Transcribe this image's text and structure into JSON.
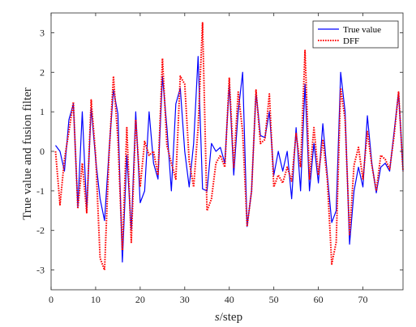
{
  "chart_data": {
    "type": "line",
    "xlabel_italic": "s",
    "xlabel_rest": "/step",
    "ylabel": "True value and fusion filter",
    "xlim": [
      0,
      79
    ],
    "ylim": [
      -3.5,
      3.5
    ],
    "xticks": [
      0,
      10,
      20,
      30,
      40,
      50,
      60,
      70
    ],
    "yticks": [
      -3,
      -2,
      -1,
      0,
      1,
      2,
      3
    ],
    "grid": false,
    "legend_position": "top-right",
    "x": [
      1,
      2,
      3,
      4,
      5,
      6,
      7,
      8,
      9,
      10,
      11,
      12,
      13,
      14,
      15,
      16,
      17,
      18,
      19,
      20,
      21,
      22,
      23,
      24,
      25,
      26,
      27,
      28,
      29,
      30,
      31,
      32,
      33,
      34,
      35,
      36,
      37,
      38,
      39,
      40,
      41,
      42,
      43,
      44,
      45,
      46,
      47,
      48,
      49,
      50,
      51,
      52,
      53,
      54,
      55,
      56,
      57,
      58,
      59,
      60,
      61,
      62,
      63,
      64,
      65,
      66,
      67,
      68,
      69,
      70,
      71,
      72,
      73,
      74,
      75,
      76,
      77,
      78,
      79
    ],
    "series": [
      {
        "name": "True value",
        "color": "#0000ff",
        "dash": "solid",
        "values": [
          0.15,
          0.0,
          -0.5,
          0.8,
          1.2,
          -1.4,
          1.0,
          -1.5,
          1.1,
          -0.2,
          -1.2,
          -1.75,
          0.0,
          1.55,
          0.95,
          -2.8,
          -0.1,
          -2.0,
          1.0,
          -1.3,
          -1.0,
          1.0,
          -0.3,
          -0.7,
          1.9,
          0.6,
          -1.0,
          1.2,
          1.6,
          0.0,
          -0.9,
          0.2,
          2.4,
          -0.95,
          -1.0,
          0.2,
          0.0,
          0.1,
          -0.3,
          1.7,
          -0.6,
          1.0,
          2.0,
          -1.9,
          -1.0,
          1.5,
          0.4,
          0.35,
          1.0,
          -0.6,
          0.0,
          -0.5,
          0.0,
          -1.2,
          0.6,
          -1.0,
          1.7,
          -1.0,
          0.2,
          -0.8,
          0.7,
          -0.6,
          -1.8,
          -1.5,
          2.0,
          1.0,
          -2.35,
          -1.0,
          -0.4,
          -0.9,
          0.9,
          -0.3,
          -1.05,
          -0.4,
          -0.3,
          -0.5,
          0.5,
          1.5,
          -0.5
        ],
        "labels_hidden": true
      },
      {
        "name": "DFF",
        "color": "#ff0000",
        "dash": "dotted",
        "values": [
          0.0,
          -1.35,
          -0.2,
          0.5,
          1.25,
          -1.45,
          -0.3,
          -1.55,
          1.3,
          -0.1,
          -2.7,
          -3.0,
          -0.1,
          1.9,
          0.3,
          -2.5,
          0.6,
          -2.3,
          0.8,
          -0.9,
          0.25,
          -0.1,
          0.0,
          -0.6,
          2.35,
          0.15,
          -0.3,
          -0.7,
          1.9,
          1.7,
          -0.25,
          -0.9,
          0.6,
          3.25,
          -1.5,
          -1.2,
          -0.3,
          -0.1,
          -0.4,
          1.85,
          -0.4,
          1.5,
          0.5,
          -1.9,
          -1.0,
          1.55,
          0.2,
          0.3,
          1.45,
          -0.9,
          -0.6,
          -0.8,
          -0.4,
          -0.75,
          0.45,
          -0.4,
          2.55,
          -0.7,
          0.6,
          -0.6,
          0.3,
          -0.7,
          -2.85,
          -2.3,
          1.6,
          0.8,
          -2.1,
          -0.35,
          0.1,
          -0.7,
          0.5,
          -0.35,
          -1.0,
          -0.1,
          -0.2,
          -0.45,
          0.4,
          1.5,
          -0.5
        ]
      }
    ]
  }
}
